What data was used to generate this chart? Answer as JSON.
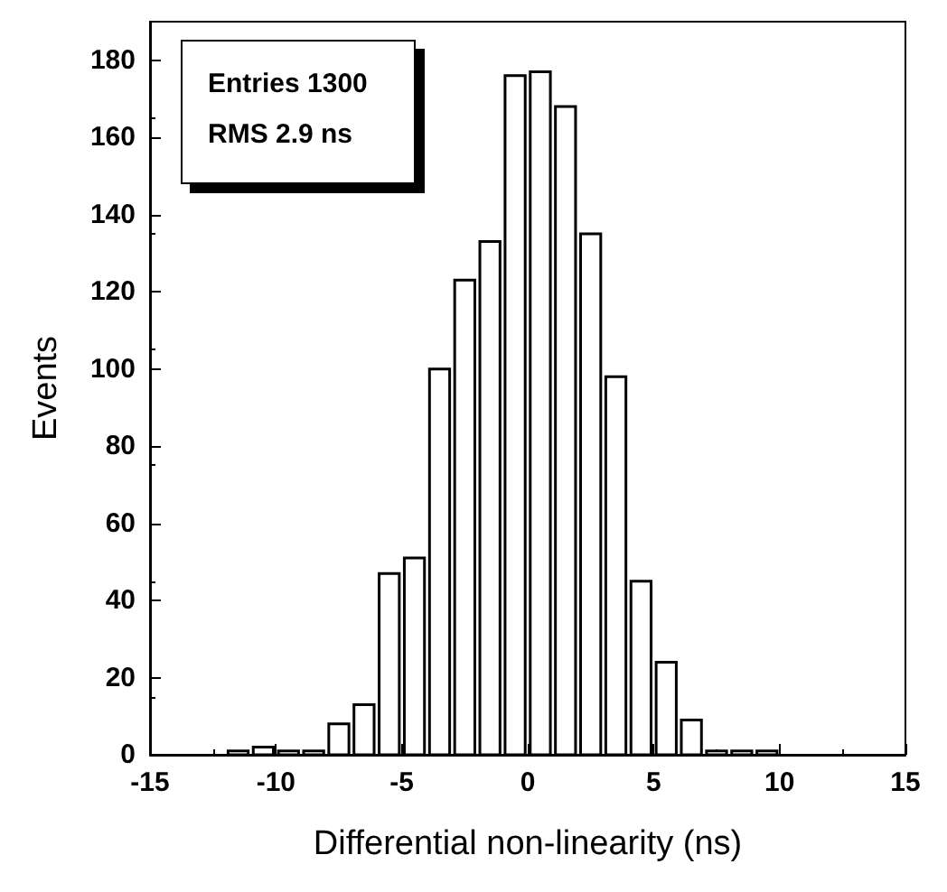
{
  "chart_data": {
    "type": "histogram",
    "xlabel": "Differential non-linearity (ns)",
    "ylabel": "Events",
    "bins": [
      -12,
      -11,
      -10,
      -9,
      -8,
      -7,
      -6,
      -5,
      -4,
      -3,
      -2,
      -1,
      0,
      1,
      2,
      3,
      4,
      5,
      6,
      7,
      8,
      9,
      10
    ],
    "values": [
      1,
      2,
      1,
      1,
      8,
      13,
      47,
      51,
      100,
      123,
      133,
      176,
      177,
      168,
      135,
      98,
      45,
      24,
      9,
      1,
      1,
      1
    ],
    "color": "#ffffff",
    "xlim": [
      -15,
      15
    ],
    "xticks": [
      -15,
      -10,
      -5,
      0,
      5,
      10,
      15
    ],
    "ylim": [
      0,
      190
    ],
    "yticks": [
      0,
      20,
      40,
      60,
      80,
      100,
      120,
      140,
      160,
      180
    ],
    "annotations": [
      "Entries 1300",
      "RMS 2.9 ns"
    ],
    "grid": false
  }
}
